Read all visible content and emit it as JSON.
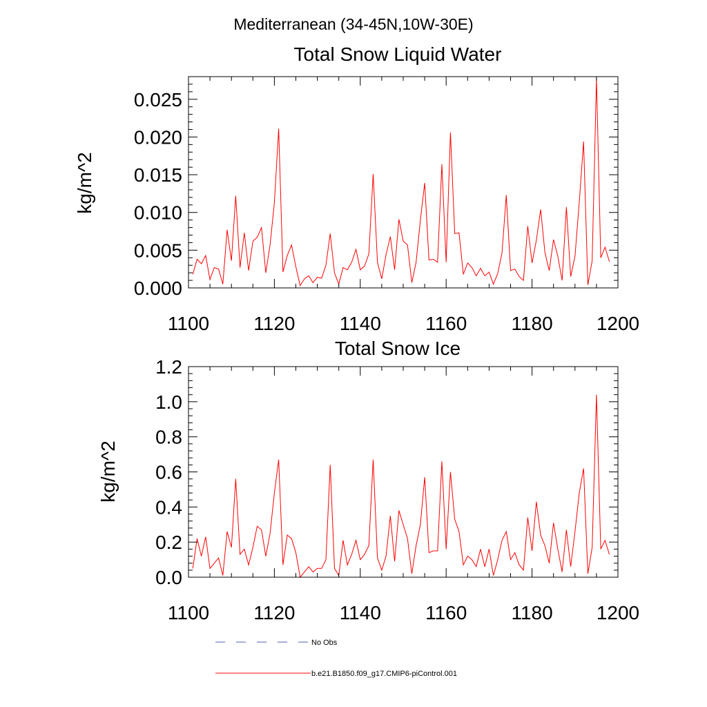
{
  "suptitle": "Mediterranean (34-45N,10W-30E)",
  "colors": {
    "series": "#ff0000",
    "obs": "#4a5db0",
    "axis": "#000000"
  },
  "chart_data": [
    {
      "type": "line",
      "title": "Total Snow Liquid Water",
      "xlabel": "",
      "ylabel": "kg/m^2",
      "xlim": [
        1100,
        1200
      ],
      "ylim": [
        0,
        0.028
      ],
      "xticks": [
        1100,
        1120,
        1140,
        1160,
        1180,
        1200
      ],
      "yticks": [
        0.0,
        0.005,
        0.01,
        0.015,
        0.02,
        0.025
      ],
      "yticklabels": [
        "0.000",
        "0.005",
        "0.010",
        "0.015",
        "0.020",
        "0.025"
      ],
      "x": [
        1101,
        1102,
        1103,
        1104,
        1105,
        1106,
        1107,
        1108,
        1109,
        1110,
        1111,
        1112,
        1113,
        1114,
        1115,
        1116,
        1117,
        1118,
        1119,
        1120,
        1121,
        1122,
        1123,
        1124,
        1125,
        1126,
        1127,
        1128,
        1129,
        1130,
        1131,
        1132,
        1133,
        1134,
        1135,
        1136,
        1137,
        1138,
        1139,
        1140,
        1141,
        1142,
        1143,
        1144,
        1145,
        1146,
        1147,
        1148,
        1149,
        1150,
        1151,
        1152,
        1153,
        1154,
        1155,
        1156,
        1157,
        1158,
        1159,
        1160,
        1161,
        1162,
        1163,
        1164,
        1165,
        1166,
        1167,
        1168,
        1169,
        1170,
        1171,
        1172,
        1173,
        1174,
        1175,
        1176,
        1177,
        1178,
        1179,
        1180,
        1181,
        1182,
        1183,
        1184,
        1185,
        1186,
        1187,
        1188,
        1189,
        1190,
        1191,
        1192,
        1193,
        1194,
        1195,
        1196,
        1197,
        1198
      ],
      "series": [
        {
          "name": "b.e21.B1850.f09_g17.CMIP6-piControl.001",
          "values": [
            0.0018,
            0.0038,
            0.0032,
            0.0043,
            0.0011,
            0.0027,
            0.0025,
            0.0005,
            0.0077,
            0.0036,
            0.0122,
            0.0027,
            0.0073,
            0.0023,
            0.0062,
            0.0067,
            0.008,
            0.002,
            0.0057,
            0.0113,
            0.0211,
            0.0021,
            0.0043,
            0.0057,
            0.0028,
            0.0003,
            0.0012,
            0.0016,
            0.0007,
            0.0014,
            0.0013,
            0.003,
            0.0072,
            0.002,
            0.0005,
            0.0027,
            0.0024,
            0.0034,
            0.0051,
            0.0024,
            0.0029,
            0.0045,
            0.0151,
            0.0034,
            0.0012,
            0.0044,
            0.0068,
            0.0024,
            0.0091,
            0.0062,
            0.0057,
            0.0007,
            0.0034,
            0.009,
            0.0139,
            0.0037,
            0.0038,
            0.0034,
            0.0164,
            0.0034,
            0.0206,
            0.0072,
            0.0073,
            0.0018,
            0.0033,
            0.0027,
            0.0016,
            0.0026,
            0.0016,
            0.0021,
            0.0005,
            0.0019,
            0.0046,
            0.0123,
            0.0023,
            0.0025,
            0.0015,
            0.001,
            0.0082,
            0.0033,
            0.0063,
            0.0104,
            0.0047,
            0.0023,
            0.0064,
            0.0042,
            0.001,
            0.0107,
            0.0015,
            0.0042,
            0.0114,
            0.0194,
            0.0004,
            0.0036,
            0.0278,
            0.004,
            0.0054,
            0.0035
          ]
        }
      ]
    },
    {
      "type": "line",
      "title": "Total Snow Ice",
      "xlabel": "",
      "ylabel": "kg/m^2",
      "xlim": [
        1100,
        1200
      ],
      "ylim": [
        0,
        1.2
      ],
      "xticks": [
        1100,
        1120,
        1140,
        1160,
        1180,
        1200
      ],
      "yticks": [
        0.0,
        0.2,
        0.4,
        0.6,
        0.8,
        1.0,
        1.2
      ],
      "yticklabels": [
        "0.0",
        "0.2",
        "0.4",
        "0.6",
        "0.8",
        "1.0",
        "1.2"
      ],
      "x": [
        1101,
        1102,
        1103,
        1104,
        1105,
        1106,
        1107,
        1108,
        1109,
        1110,
        1111,
        1112,
        1113,
        1114,
        1115,
        1116,
        1117,
        1118,
        1119,
        1120,
        1121,
        1122,
        1123,
        1124,
        1125,
        1126,
        1127,
        1128,
        1129,
        1130,
        1131,
        1132,
        1133,
        1134,
        1135,
        1136,
        1137,
        1138,
        1139,
        1140,
        1141,
        1142,
        1143,
        1144,
        1145,
        1146,
        1147,
        1148,
        1149,
        1150,
        1151,
        1152,
        1153,
        1154,
        1155,
        1156,
        1157,
        1158,
        1159,
        1160,
        1161,
        1162,
        1163,
        1164,
        1165,
        1166,
        1167,
        1168,
        1169,
        1170,
        1171,
        1172,
        1173,
        1174,
        1175,
        1176,
        1177,
        1178,
        1179,
        1180,
        1181,
        1182,
        1183,
        1184,
        1185,
        1186,
        1187,
        1188,
        1189,
        1190,
        1191,
        1192,
        1193,
        1194,
        1195,
        1196,
        1197,
        1198
      ],
      "series": [
        {
          "name": "b.e21.B1850.f09_g17.CMIP6-piControl.001",
          "values": [
            0.05,
            0.22,
            0.12,
            0.23,
            0.05,
            0.08,
            0.11,
            0.01,
            0.26,
            0.17,
            0.56,
            0.13,
            0.16,
            0.07,
            0.17,
            0.29,
            0.27,
            0.12,
            0.25,
            0.48,
            0.67,
            0.07,
            0.24,
            0.22,
            0.14,
            0.0,
            0.03,
            0.06,
            0.03,
            0.05,
            0.05,
            0.1,
            0.64,
            0.05,
            0.01,
            0.21,
            0.07,
            0.13,
            0.21,
            0.1,
            0.13,
            0.18,
            0.67,
            0.11,
            0.04,
            0.12,
            0.35,
            0.09,
            0.38,
            0.3,
            0.22,
            0.02,
            0.18,
            0.3,
            0.57,
            0.14,
            0.15,
            0.15,
            0.66,
            0.16,
            0.6,
            0.33,
            0.26,
            0.07,
            0.12,
            0.1,
            0.06,
            0.16,
            0.06,
            0.16,
            0.01,
            0.1,
            0.21,
            0.26,
            0.1,
            0.14,
            0.07,
            0.04,
            0.34,
            0.15,
            0.43,
            0.24,
            0.18,
            0.08,
            0.31,
            0.16,
            0.03,
            0.27,
            0.06,
            0.26,
            0.48,
            0.62,
            0.02,
            0.17,
            1.04,
            0.16,
            0.21,
            0.13
          ]
        }
      ]
    }
  ],
  "legend": [
    {
      "label": "No Obs",
      "style": "dashed"
    },
    {
      "label": "b.e21.B1850.f09_g17.CMIP6-piControl.001",
      "style": "solid"
    }
  ]
}
